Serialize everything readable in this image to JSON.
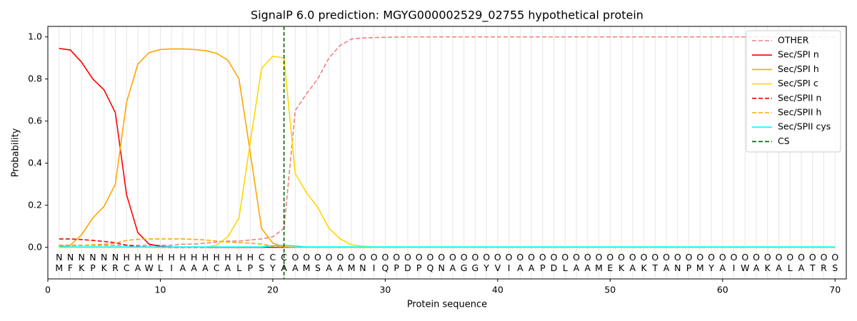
{
  "chart_data": {
    "type": "line",
    "title": "SignalP 6.0 prediction: MGYG000002529_02755 hypothetical protein",
    "xlabel": "Protein sequence",
    "ylabel": "Probability",
    "x": [
      1,
      2,
      3,
      4,
      5,
      6,
      7,
      8,
      9,
      10,
      11,
      12,
      13,
      14,
      15,
      16,
      17,
      18,
      19,
      20,
      21,
      22,
      23,
      24,
      25,
      26,
      27,
      28,
      29,
      30,
      31,
      32,
      33,
      34,
      35,
      36,
      37,
      38,
      39,
      40,
      41,
      42,
      43,
      44,
      45,
      46,
      47,
      48,
      49,
      50,
      51,
      52,
      53,
      54,
      55,
      56,
      57,
      58,
      59,
      60,
      61,
      62,
      63,
      64,
      65,
      66,
      67,
      68,
      69,
      70
    ],
    "xlim": [
      0,
      71
    ],
    "xticks": [
      0,
      10,
      20,
      30,
      40,
      50,
      60,
      70
    ],
    "ylim": [
      -0.15,
      1.05
    ],
    "yticks": [
      {
        "value": 0,
        "label": "0.0"
      },
      {
        "value": 0.2,
        "label": "0.2"
      },
      {
        "value": 0.4,
        "label": "0.4"
      },
      {
        "value": 0.6,
        "label": "0.6"
      },
      {
        "value": 0.8,
        "label": "0.8"
      },
      {
        "value": 1,
        "label": "1.0"
      }
    ],
    "grid": true,
    "legend": "upper right",
    "series": [
      {
        "name": "OTHER",
        "color": "#f08080",
        "linestyle": "dashed",
        "values": [
          0.01,
          0.01,
          0.01,
          0.01,
          0.01,
          0.01,
          0.01,
          0.01,
          0.01,
          0.01,
          0.01,
          0.015,
          0.015,
          0.02,
          0.025,
          0.03,
          0.03,
          0.035,
          0.04,
          0.05,
          0.09,
          0.65,
          0.73,
          0.8,
          0.9,
          0.96,
          0.99,
          0.995,
          0.997,
          0.998,
          0.999,
          1,
          1,
          1,
          1,
          1,
          1,
          1,
          1,
          1,
          1,
          1,
          1,
          1,
          1,
          1,
          1,
          1,
          1,
          1,
          1,
          1,
          1,
          1,
          1,
          1,
          1,
          1,
          1,
          1,
          1,
          1,
          1,
          1,
          1,
          1,
          1,
          1,
          1,
          1
        ]
      },
      {
        "name": "Sec/SPI n",
        "color": "#ff0000",
        "linestyle": "solid",
        "values": [
          0.945,
          0.938,
          0.88,
          0.8,
          0.748,
          0.64,
          0.25,
          0.07,
          0.015,
          0.005,
          0.002,
          0,
          0,
          0,
          0,
          0,
          0,
          0,
          0,
          0,
          0,
          0,
          0,
          0,
          0,
          0,
          0,
          0,
          0,
          0,
          0,
          0,
          0,
          0,
          0,
          0,
          0,
          0,
          0,
          0,
          0,
          0,
          0,
          0,
          0,
          0,
          0,
          0,
          0,
          0,
          0,
          0,
          0,
          0,
          0,
          0,
          0,
          0,
          0,
          0,
          0,
          0,
          0,
          0,
          0,
          0,
          0,
          0,
          0,
          0
        ]
      },
      {
        "name": "Sec/SPI h",
        "color": "#ffa500",
        "linestyle": "solid",
        "values": [
          0,
          0.01,
          0.06,
          0.14,
          0.195,
          0.3,
          0.69,
          0.87,
          0.925,
          0.94,
          0.943,
          0.943,
          0.94,
          0.935,
          0.922,
          0.89,
          0.8,
          0.45,
          0.09,
          0.02,
          0.003,
          0,
          0,
          0,
          0,
          0,
          0,
          0,
          0,
          0,
          0,
          0,
          0,
          0,
          0,
          0,
          0,
          0,
          0,
          0,
          0,
          0,
          0,
          0,
          0,
          0,
          0,
          0,
          0,
          0,
          0,
          0,
          0,
          0,
          0,
          0,
          0,
          0,
          0,
          0,
          0,
          0,
          0,
          0,
          0,
          0,
          0,
          0,
          0,
          0
        ]
      },
      {
        "name": "Sec/SPI c",
        "color": "#ffd700",
        "linestyle": "solid",
        "values": [
          0,
          0,
          0,
          0,
          0,
          0,
          0,
          0,
          0,
          0,
          0,
          0,
          0,
          0,
          0.01,
          0.05,
          0.14,
          0.5,
          0.85,
          0.908,
          0.9,
          0.35,
          0.26,
          0.19,
          0.09,
          0.04,
          0.012,
          0.005,
          0.002,
          0,
          0,
          0,
          0,
          0,
          0,
          0,
          0,
          0,
          0,
          0,
          0,
          0,
          0,
          0,
          0,
          0,
          0,
          0,
          0,
          0,
          0,
          0,
          0,
          0,
          0,
          0,
          0,
          0,
          0,
          0,
          0,
          0,
          0,
          0,
          0,
          0,
          0,
          0,
          0,
          0
        ]
      },
      {
        "name": "Sec/SPII n",
        "color": "#ff0000",
        "linestyle": "dashed",
        "values": [
          0.04,
          0.04,
          0.037,
          0.033,
          0.028,
          0.022,
          0.01,
          0.004,
          0.002,
          0.001,
          0,
          0,
          0,
          0,
          0,
          0,
          0,
          0,
          0,
          0,
          0,
          0,
          0,
          0,
          0,
          0,
          0,
          0,
          0,
          0,
          0,
          0,
          0,
          0,
          0,
          0,
          0,
          0,
          0,
          0,
          0,
          0,
          0,
          0,
          0,
          0,
          0,
          0,
          0,
          0,
          0,
          0,
          0,
          0,
          0,
          0,
          0,
          0,
          0,
          0,
          0,
          0,
          0,
          0,
          0,
          0,
          0,
          0,
          0,
          0
        ]
      },
      {
        "name": "Sec/SPII h",
        "color": "#ffa500",
        "linestyle": "dashed",
        "values": [
          0.005,
          0.008,
          0.01,
          0.012,
          0.015,
          0.02,
          0.033,
          0.038,
          0.04,
          0.04,
          0.04,
          0.04,
          0.038,
          0.035,
          0.03,
          0.025,
          0.022,
          0.02,
          0.015,
          0.005,
          0.002,
          0,
          0,
          0,
          0,
          0,
          0,
          0,
          0,
          0,
          0,
          0,
          0,
          0,
          0,
          0,
          0,
          0,
          0,
          0,
          0,
          0,
          0,
          0,
          0,
          0,
          0,
          0,
          0,
          0,
          0,
          0,
          0,
          0,
          0,
          0,
          0,
          0,
          0,
          0,
          0,
          0,
          0,
          0,
          0,
          0,
          0,
          0,
          0,
          0
        ]
      },
      {
        "name": "Sec/SPII cys",
        "color": "#00ffff",
        "linestyle": "solid",
        "values": [
          0.002,
          0.002,
          0.002,
          0.002,
          0.002,
          0.002,
          0.002,
          0.002,
          0.002,
          0.002,
          0.002,
          0.002,
          0.002,
          0.002,
          0.002,
          0.002,
          0.002,
          0.002,
          0.002,
          0.008,
          0.01,
          0.006,
          0.002,
          0.002,
          0.002,
          0.002,
          0.002,
          0.002,
          0.002,
          0.002,
          0.002,
          0.002,
          0.002,
          0.002,
          0.002,
          0.002,
          0.002,
          0.002,
          0.002,
          0.002,
          0.002,
          0.002,
          0.002,
          0.002,
          0.002,
          0.002,
          0.002,
          0.002,
          0.002,
          0.002,
          0.002,
          0.002,
          0.002,
          0.002,
          0.002,
          0.002,
          0.002,
          0.002,
          0.002,
          0.002,
          0.002,
          0.002,
          0.002,
          0.002,
          0.002,
          0.002,
          0.002,
          0.002,
          0.002,
          0.002
        ]
      }
    ],
    "cleavage_site": {
      "name": "CS",
      "color": "#006400",
      "x": 21
    },
    "region_labels": [
      "N",
      "N",
      "N",
      "N",
      "N",
      "N",
      "H",
      "H",
      "H",
      "H",
      "H",
      "H",
      "H",
      "H",
      "H",
      "H",
      "H",
      "H",
      "C",
      "C",
      "C",
      "O",
      "O",
      "O",
      "O",
      "O",
      "O",
      "O",
      "O",
      "O",
      "O",
      "O",
      "O",
      "O",
      "O",
      "O",
      "O",
      "O",
      "O",
      "O",
      "O",
      "O",
      "O",
      "O",
      "O",
      "O",
      "O",
      "O",
      "O",
      "O",
      "O",
      "O",
      "O",
      "O",
      "O",
      "O",
      "O",
      "O",
      "O",
      "O",
      "O",
      "O",
      "O",
      "O",
      "O",
      "O",
      "O",
      "O",
      "O",
      "O"
    ],
    "region_colors": [
      {
        "label": "N",
        "color": "#ff0000"
      },
      {
        "label": "H",
        "color": "#ffa500"
      },
      {
        "label": "C",
        "color": "#ffd700"
      },
      {
        "label": "O",
        "color": "#808080"
      }
    ],
    "residues": [
      "M",
      "F",
      "K",
      "P",
      "K",
      "R",
      "C",
      "A",
      "W",
      "L",
      "I",
      "A",
      "A",
      "A",
      "C",
      "A",
      "L",
      "P",
      "S",
      "Y",
      "A",
      "A",
      "M",
      "S",
      "A",
      "A",
      "M",
      "N",
      "I",
      "Q",
      "P",
      "D",
      "P",
      "Q",
      "N",
      "A",
      "G",
      "G",
      "Y",
      "V",
      "I",
      "A",
      "A",
      "P",
      "D",
      "L",
      "A",
      "A",
      "M",
      "E",
      "K",
      "A",
      "K",
      "T",
      "A",
      "N",
      "P",
      "M",
      "Y",
      "A",
      "I",
      "W",
      "A",
      "K",
      "A",
      "L",
      "A",
      "T",
      "R",
      "S"
    ]
  }
}
